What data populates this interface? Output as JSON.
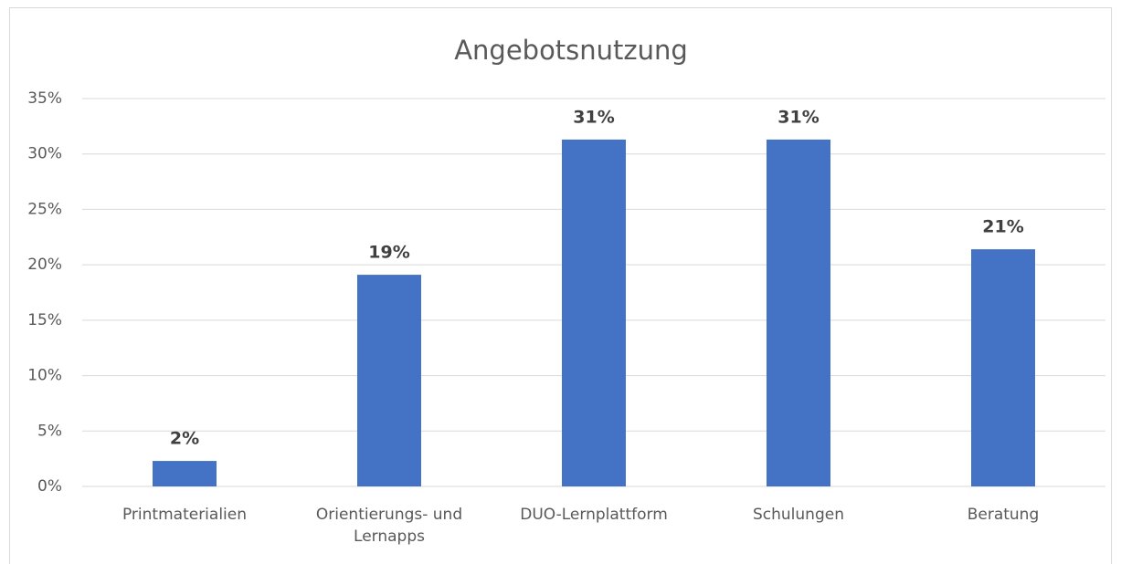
{
  "chart_data": {
    "type": "bar",
    "title": "Angebotsnutzung",
    "categories": [
      "Printmaterialien",
      "Orientierungs- und Lernapps",
      "DUO-Lernplattform",
      "Schulungen",
      "Beratung"
    ],
    "values": [
      2.3,
      19.1,
      31.3,
      31.3,
      21.4
    ],
    "value_labels": [
      "2%",
      "19%",
      "31%",
      "31%",
      "21%"
    ],
    "color": "#4472c4",
    "ylim": [
      0,
      35
    ],
    "yticks": [
      {
        "value": 0,
        "label": "0%"
      },
      {
        "value": 5,
        "label": "5%"
      },
      {
        "value": 10,
        "label": "10%"
      },
      {
        "value": 15,
        "label": "15%"
      },
      {
        "value": 20,
        "label": "20%"
      },
      {
        "value": 25,
        "label": "25%"
      },
      {
        "value": 30,
        "label": "30%"
      },
      {
        "value": 35,
        "label": "35%"
      }
    ],
    "grid": true
  }
}
